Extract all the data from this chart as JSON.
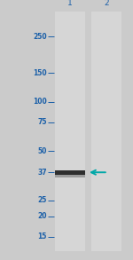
{
  "bg_color": "#cbcbcb",
  "lane_color": "#d6d6d6",
  "label_color": "#1a5fa8",
  "tick_color": "#1a5fa8",
  "arrow_color": "#00a8a8",
  "band_color_dark": "#1c1c1c",
  "band_color_mid": "#555555",
  "marker_labels": [
    "250",
    "150",
    "100",
    "75",
    "50",
    "37",
    "25",
    "20",
    "15"
  ],
  "marker_kda": [
    250,
    150,
    100,
    75,
    50,
    37,
    25,
    20,
    15
  ],
  "band_kda": 37,
  "lane_labels": [
    "1",
    "2"
  ],
  "ymin": 13.5,
  "ymax": 270,
  "font_size": 5.5,
  "lane_label_fontsize": 6.5
}
